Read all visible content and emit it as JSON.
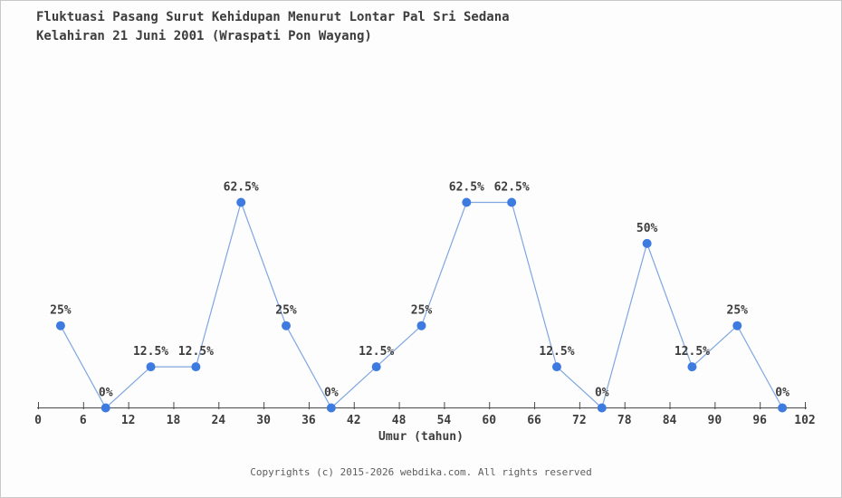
{
  "page": {
    "footer": "Copyrights (c) 2015-2026 webdika.com. All rights reserved"
  },
  "chart_data": {
    "type": "line",
    "title": "Fluktuasi Pasang Surut Kehidupan Menurut Lontar Pal Sri Sedana",
    "subtitle": "Kelahiran 21 Juni 2001 (Wraspati Pon Wayang)",
    "xlabel": "Umur (tahun)",
    "x": [
      3,
      9,
      15,
      21,
      27,
      33,
      39,
      45,
      51,
      57,
      63,
      69,
      75,
      81,
      87,
      93,
      99
    ],
    "values": [
      25,
      0,
      12.5,
      12.5,
      62.5,
      25,
      0,
      12.5,
      25,
      62.5,
      62.5,
      12.5,
      0,
      50,
      12.5,
      25,
      0
    ],
    "point_labels": [
      "25%",
      "0%",
      "12.5%",
      "12.5%",
      "62.5%",
      "25%",
      "0%",
      "12.5%",
      "25%",
      "62.5%",
      "62.5%",
      "12.5%",
      "0%",
      "50%",
      "12.5%",
      "25%",
      "0%"
    ],
    "x_ticks": [
      0,
      6,
      12,
      18,
      24,
      30,
      36,
      42,
      48,
      54,
      60,
      66,
      72,
      78,
      84,
      90,
      96,
      102
    ],
    "xlim": [
      0,
      102
    ],
    "ylim": [
      0,
      70
    ],
    "grid": false,
    "legend": "none",
    "colors": {
      "line": "#7fa6e0",
      "marker": "#3e7be0",
      "axis": "#4a4a4a",
      "text": "#3d3d3d"
    }
  }
}
